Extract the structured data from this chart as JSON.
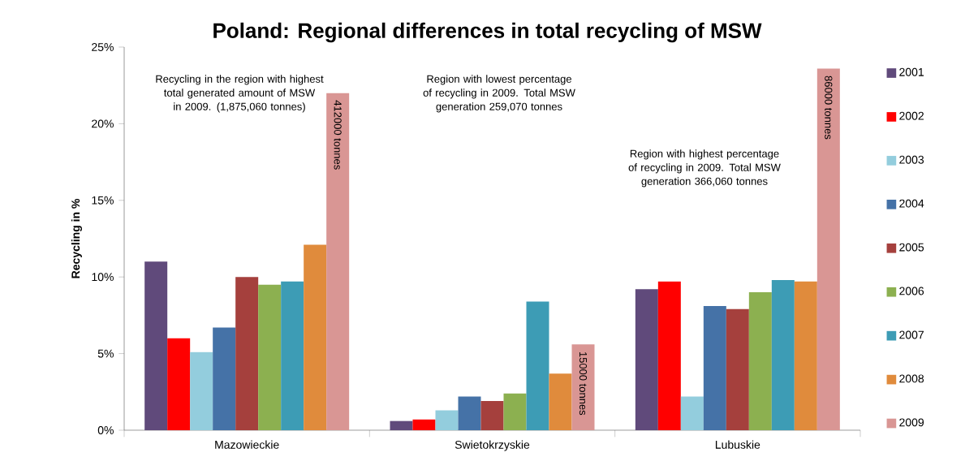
{
  "chart_data": {
    "type": "bar",
    "title": "Poland: Regional differences in total recycling of MSW",
    "ylabel": "Recycling in %",
    "categories": [
      "Mazowieckie",
      "Swietokrzyskie",
      "Lubuskie"
    ],
    "series": [
      {
        "name": "2001",
        "color": "#604a7b",
        "values": [
          11.0,
          0.6,
          9.2
        ]
      },
      {
        "name": "2002",
        "color": "#ff0000",
        "values": [
          6.0,
          0.7,
          9.7
        ]
      },
      {
        "name": "2003",
        "color": "#93cddd",
        "values": [
          5.1,
          1.3,
          2.2
        ]
      },
      {
        "name": "2004",
        "color": "#4572a7",
        "values": [
          6.7,
          2.2,
          8.1
        ]
      },
      {
        "name": "2005",
        "color": "#a5403d",
        "values": [
          10.0,
          1.9,
          7.9
        ]
      },
      {
        "name": "2006",
        "color": "#8cb050",
        "values": [
          9.5,
          2.4,
          9.0
        ]
      },
      {
        "name": "2007",
        "color": "#3d9cb5",
        "values": [
          9.7,
          8.4,
          9.8
        ]
      },
      {
        "name": "2008",
        "color": "#e08b3c",
        "values": [
          12.1,
          3.7,
          9.7
        ]
      },
      {
        "name": "2009",
        "color": "#d99694",
        "values": [
          22.0,
          5.6,
          23.6
        ]
      }
    ],
    "ylim": [
      0,
      25
    ],
    "yticks": [
      {
        "value": 0,
        "label": "0%"
      },
      {
        "value": 5,
        "label": "5%"
      },
      {
        "value": 10,
        "label": "10%"
      },
      {
        "value": 15,
        "label": "15%"
      },
      {
        "value": 20,
        "label": "20%"
      },
      {
        "value": 25,
        "label": "25%"
      }
    ],
    "grid": false,
    "legend": "right",
    "annotations": [
      "Recycling in the region with highest total generated amount of MSW in 2009. (1,875,060 tonnes)",
      "Region with lowest percentage of recycling in 2009. Total MSW generation 259,070 tonnes",
      "Region with highest percentage of recycling in 2009. Total MSW generation 366,060 tonnes",
      "412000 tonnes",
      "15000 tonnes",
      "86000 tonnes"
    ]
  }
}
